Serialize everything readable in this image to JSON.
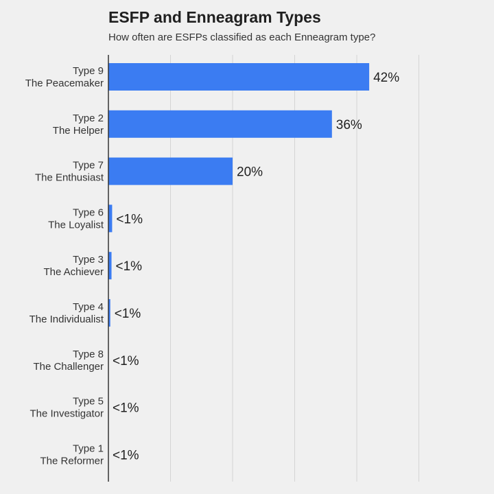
{
  "title": "ESFP and Enneagram Types",
  "subtitle": "How often are ESFPs classified as each Enneagram type?",
  "colors": {
    "bar": "#3b7cf2",
    "grid": "#d4d4d4",
    "axis": "#333333",
    "text": "#333333",
    "background": "#f0f0f0"
  },
  "chart_data": {
    "type": "bar",
    "orientation": "horizontal",
    "title": "ESFP and Enneagram Types",
    "subtitle": "How often are ESFPs classified as each Enneagram type?",
    "xlabel": "",
    "ylabel": "",
    "xlim": [
      0,
      50
    ],
    "grid": true,
    "categories": [
      {
        "type": "Type 9",
        "name": "The Peacemaker"
      },
      {
        "type": "Type 2",
        "name": "The Helper"
      },
      {
        "type": "Type 7",
        "name": "The Enthusiast"
      },
      {
        "type": "Type 6",
        "name": "The Loyalist"
      },
      {
        "type": "Type 3",
        "name": "The Achiever"
      },
      {
        "type": "Type 4",
        "name": "The Individualist"
      },
      {
        "type": "Type 8",
        "name": "The Challenger"
      },
      {
        "type": "Type 5",
        "name": "The Investigator"
      },
      {
        "type": "Type 1",
        "name": "The Reformer"
      }
    ],
    "values": [
      42,
      36,
      20,
      0.6,
      0.5,
      0.3,
      0,
      0,
      0
    ],
    "data_labels": [
      "42%",
      "36%",
      "20%",
      "<1%",
      "<1%",
      "<1%",
      "<1%",
      "<1%",
      "<1%"
    ]
  }
}
